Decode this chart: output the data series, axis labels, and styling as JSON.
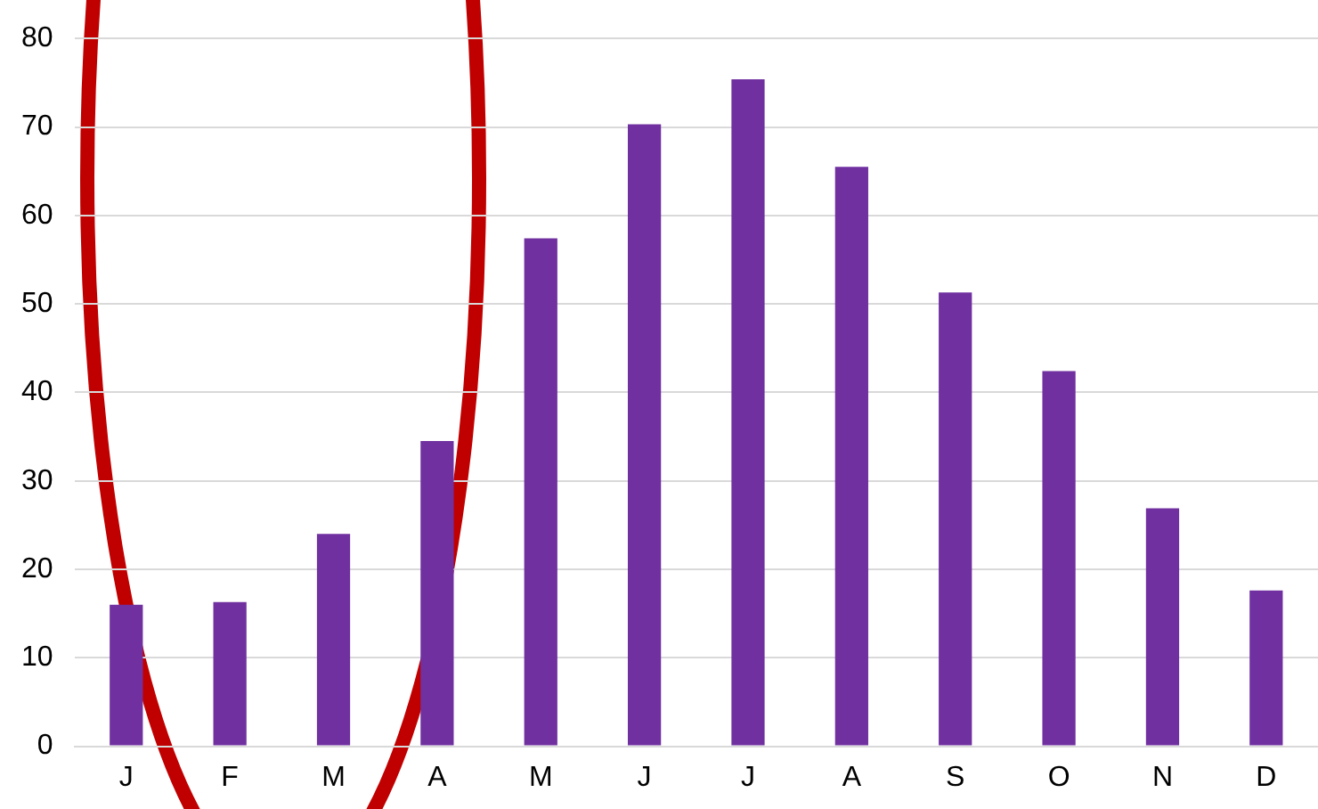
{
  "chart_data": {
    "type": "bar",
    "categories": [
      "J",
      "F",
      "M",
      "A",
      "M",
      "J",
      "J",
      "A",
      "S",
      "O",
      "N",
      "D"
    ],
    "values": [
      16,
      16.3,
      24,
      34.5,
      57.4,
      70.3,
      75.4,
      65.5,
      51.3,
      42.4,
      26.9,
      17.6
    ],
    "color": "#7030a0",
    "ylim": [
      0,
      80
    ],
    "yticks": [
      0,
      10,
      20,
      30,
      40,
      50,
      60,
      70,
      80
    ],
    "grid": "y",
    "legend": false
  }
}
